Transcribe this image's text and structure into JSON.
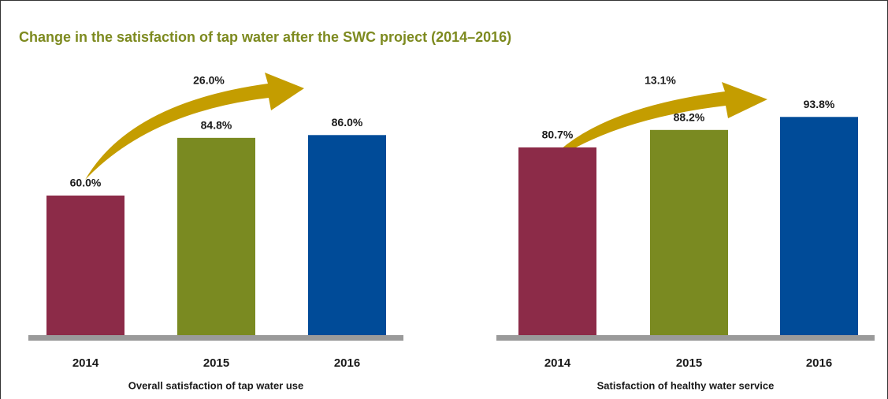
{
  "title": "Change in the satisfaction of tap water after the SWC project (2014–2016)",
  "chart_data": [
    {
      "type": "bar",
      "xlabel": "Overall satisfaction of tap water use",
      "annotation": "26.0%",
      "categories": [
        "2014",
        "2015",
        "2016"
      ],
      "values": [
        60.0,
        84.8,
        86.0
      ],
      "value_labels": [
        "60.0%",
        "84.8%",
        "86.0%"
      ],
      "colors": [
        "#8c2b48",
        "#7a8a21",
        "#004b98"
      ]
    },
    {
      "type": "bar",
      "xlabel": "Satisfaction of healthy water service",
      "annotation": "13.1%",
      "categories": [
        "2014",
        "2015",
        "2016"
      ],
      "values": [
        80.7,
        88.2,
        93.8
      ],
      "value_labels": [
        "80.7%",
        "88.2%",
        "93.8%"
      ],
      "colors": [
        "#8c2b48",
        "#7a8a21",
        "#004b98"
      ]
    }
  ]
}
